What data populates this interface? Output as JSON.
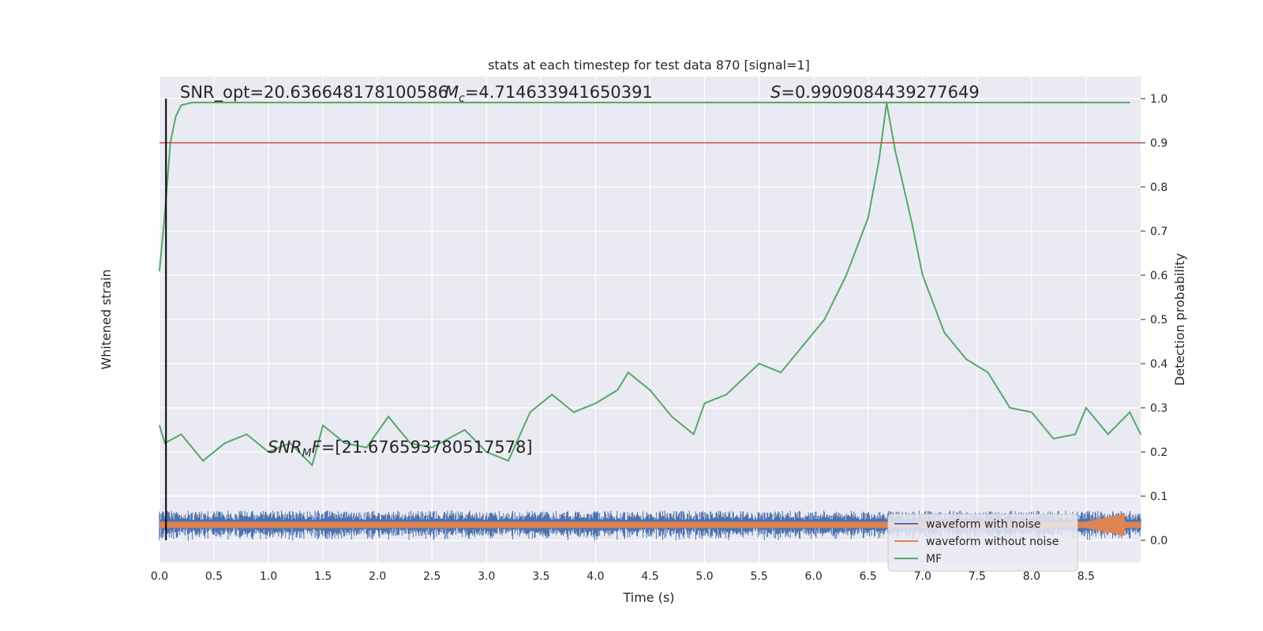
{
  "chart_data": {
    "type": "line",
    "title": "stats at each timestep for test data 870 [signal=1]",
    "xlabel": "Time (s)",
    "ylabel_left": "Whitened strain",
    "ylabel_right": "Detection probability",
    "xlim": [
      0,
      9.0
    ],
    "ylim_right": [
      -0.05,
      1.05
    ],
    "x_ticks": [
      0.0,
      0.5,
      1.0,
      1.5,
      2.0,
      2.5,
      3.0,
      3.5,
      4.0,
      4.5,
      5.0,
      5.5,
      6.0,
      6.5,
      7.0,
      7.5,
      8.0,
      8.5
    ],
    "x_tick_labels": [
      "0.0",
      "0.5",
      "1.0",
      "1.5",
      "2.0",
      "2.5",
      "3.0",
      "3.5",
      "4.0",
      "4.5",
      "5.0",
      "5.5",
      "6.0",
      "6.5",
      "7.0",
      "7.5",
      "8.0",
      "8.5"
    ],
    "y_ticks_right": [
      0.0,
      0.1,
      0.2,
      0.3,
      0.4,
      0.5,
      0.6,
      0.7,
      0.8,
      0.9,
      1.0
    ],
    "y_tick_labels_right": [
      "0.0",
      "0.1",
      "0.2",
      "0.3",
      "0.4",
      "0.5",
      "0.6",
      "0.7",
      "0.8",
      "0.9",
      "1.0"
    ],
    "threshold": 0.9,
    "marker_time": 0.06,
    "annotations": {
      "snr_opt": "SNR_opt=20.636648178100586",
      "mc_symbol": "M",
      "mc_sub": "c",
      "mc_value": "=4.714633941650391",
      "s_symbol": "S",
      "s_value": "=0.9909084439277649",
      "snr_mf_symbol": "SNR",
      "snr_mf_sub": "M",
      "snr_mf_tail": "F",
      "snr_mf_value": "=[21.676593780517578]"
    },
    "legend": [
      "waveform with noise",
      "waveform without noise",
      "MF"
    ],
    "legend_position": "lower-right",
    "grid": true,
    "series": [
      {
        "name": "MF",
        "x": [
          0.0,
          0.05,
          0.1,
          0.15,
          0.2,
          0.3,
          1.0,
          2.0,
          3.0,
          4.0,
          5.0,
          6.0,
          6.5,
          7.0,
          8.0,
          8.9
        ],
        "values": [
          0.61,
          0.74,
          0.9,
          0.96,
          0.985,
          0.991,
          0.991,
          0.991,
          0.991,
          0.991,
          0.991,
          0.991,
          0.991,
          0.991,
          0.991,
          0.991
        ]
      },
      {
        "name": "MF",
        "x": [
          0.0,
          0.05,
          0.2,
          0.4,
          0.6,
          0.8,
          1.0,
          1.2,
          1.4,
          1.5,
          1.7,
          1.9,
          2.1,
          2.3,
          2.5,
          2.8,
          3.0,
          3.2,
          3.4,
          3.6,
          3.8,
          4.0,
          4.2,
          4.3,
          4.5,
          4.7,
          4.9,
          5.0,
          5.2,
          5.5,
          5.7,
          5.9,
          6.1,
          6.3,
          6.5,
          6.6,
          6.67,
          6.75,
          6.9,
          7.0,
          7.2,
          7.4,
          7.6,
          7.8,
          8.0,
          8.2,
          8.4,
          8.5,
          8.7,
          8.9,
          9.0
        ],
        "values": [
          0.26,
          0.22,
          0.24,
          0.18,
          0.22,
          0.24,
          0.2,
          0.22,
          0.17,
          0.26,
          0.22,
          0.21,
          0.28,
          0.22,
          0.21,
          0.25,
          0.2,
          0.18,
          0.29,
          0.33,
          0.29,
          0.31,
          0.34,
          0.38,
          0.34,
          0.28,
          0.24,
          0.31,
          0.33,
          0.4,
          0.38,
          0.44,
          0.5,
          0.6,
          0.73,
          0.86,
          0.99,
          0.88,
          0.72,
          0.6,
          0.47,
          0.41,
          0.38,
          0.3,
          0.29,
          0.23,
          0.24,
          0.3,
          0.24,
          0.29,
          0.24
        ]
      }
    ]
  }
}
